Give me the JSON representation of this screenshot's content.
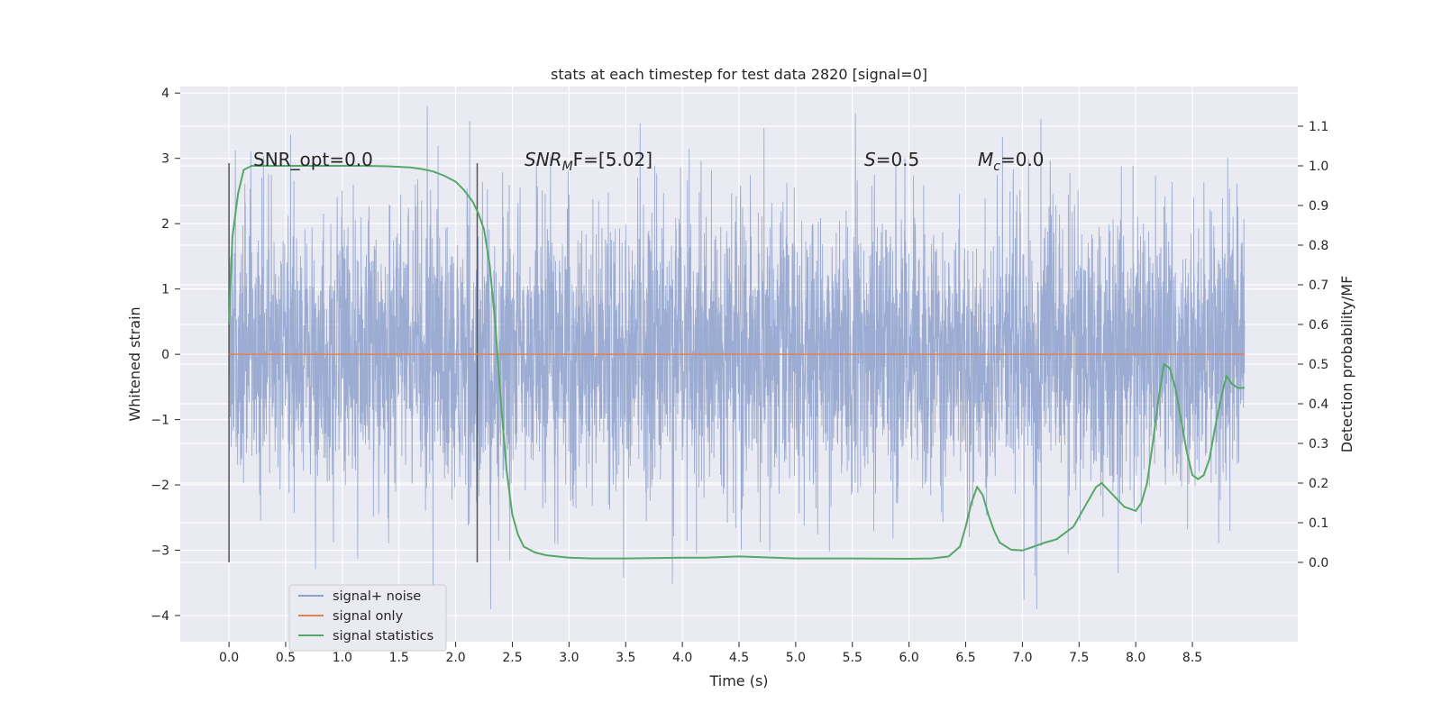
{
  "chart_data": {
    "type": "line",
    "title": "stats at each timestep for test data 2820 [signal=0]",
    "xlabel": "Time (s)",
    "ylabel": "Whitened strain",
    "ylabel_right": "Detection probability/MF",
    "xlim": [
      -0.43,
      9.43
    ],
    "ylim": [
      -4.4,
      4.1
    ],
    "ylim_right": [
      -0.2,
      1.2
    ],
    "x_ticks": [
      "0.0",
      "0.5",
      "1.0",
      "1.5",
      "2.0",
      "2.5",
      "3.0",
      "3.5",
      "4.0",
      "4.5",
      "5.0",
      "5.5",
      "6.0",
      "6.5",
      "7.0",
      "7.5",
      "8.0",
      "8.5"
    ],
    "y_ticks": [
      "−4",
      "−3",
      "−2",
      "−1",
      "0",
      "1",
      "2",
      "3",
      "4"
    ],
    "y2_ticks": [
      "0.0",
      "0.1",
      "0.2",
      "0.3",
      "0.4",
      "0.5",
      "0.6",
      "0.7",
      "0.8",
      "0.9",
      "1.0",
      "1.1"
    ],
    "grid": true,
    "legend_position": "lower-left",
    "vlines": [
      0.0,
      2.19
    ],
    "annotations": {
      "snr_opt": "SNR_opt=0.0",
      "snr_mf_base": "SNR",
      "snr_mf_sub": "M",
      "snr_mf_rest": "F=[5.02]",
      "s_base": "S",
      "s_rest": "=0.5",
      "mc_base": "M",
      "mc_sub": "c",
      "mc_rest": "=0.0"
    },
    "series": [
      {
        "name": "signal+ noise",
        "color": "#8da0cb",
        "description": "whitened noisy strain, dense noise fluctuating roughly between -2.5 and 2.5 with peaks to about ±3.7",
        "x_range": [
          0.0,
          8.96
        ],
        "typical_band": [
          -2.3,
          2.3
        ],
        "peak_range": [
          -3.9,
          3.8
        ]
      },
      {
        "name": "signal only",
        "color": "#dd8452",
        "x": [
          0.0,
          8.96
        ],
        "values": [
          0.0,
          0.0
        ]
      },
      {
        "name": "signal statistics",
        "color": "#55a868",
        "axis": "right",
        "x": [
          0.0,
          0.03,
          0.08,
          0.13,
          0.2,
          0.3,
          0.5,
          0.8,
          1.0,
          1.2,
          1.4,
          1.6,
          1.7,
          1.8,
          1.9,
          2.0,
          2.07,
          2.15,
          2.2,
          2.25,
          2.3,
          2.35,
          2.4,
          2.45,
          2.5,
          2.55,
          2.6,
          2.7,
          2.8,
          3.0,
          3.2,
          3.5,
          3.8,
          4.0,
          4.2,
          4.5,
          5.0,
          5.5,
          6.0,
          6.2,
          6.35,
          6.45,
          6.5,
          6.55,
          6.6,
          6.65,
          6.7,
          6.75,
          6.8,
          6.9,
          7.0,
          7.1,
          7.2,
          7.3,
          7.45,
          7.55,
          7.65,
          7.7,
          7.8,
          7.9,
          8.0,
          8.05,
          8.1,
          8.15,
          8.2,
          8.25,
          8.3,
          8.35,
          8.4,
          8.45,
          8.5,
          8.55,
          8.6,
          8.65,
          8.7,
          8.75,
          8.8,
          8.85,
          8.9,
          8.96
        ],
        "values": [
          0.6,
          0.82,
          0.93,
          0.99,
          1.0,
          1.0,
          1.0,
          1.0,
          1.0,
          1.0,
          0.999,
          0.996,
          0.992,
          0.986,
          0.975,
          0.96,
          0.94,
          0.91,
          0.88,
          0.84,
          0.75,
          0.6,
          0.4,
          0.23,
          0.12,
          0.07,
          0.04,
          0.025,
          0.018,
          0.012,
          0.01,
          0.01,
          0.011,
          0.012,
          0.012,
          0.015,
          0.01,
          0.01,
          0.009,
          0.01,
          0.015,
          0.04,
          0.09,
          0.15,
          0.19,
          0.17,
          0.12,
          0.08,
          0.05,
          0.032,
          0.03,
          0.04,
          0.05,
          0.058,
          0.09,
          0.14,
          0.19,
          0.2,
          0.17,
          0.14,
          0.13,
          0.15,
          0.2,
          0.3,
          0.41,
          0.5,
          0.49,
          0.44,
          0.36,
          0.28,
          0.22,
          0.21,
          0.22,
          0.26,
          0.34,
          0.41,
          0.47,
          0.45,
          0.44,
          0.44
        ]
      }
    ]
  }
}
